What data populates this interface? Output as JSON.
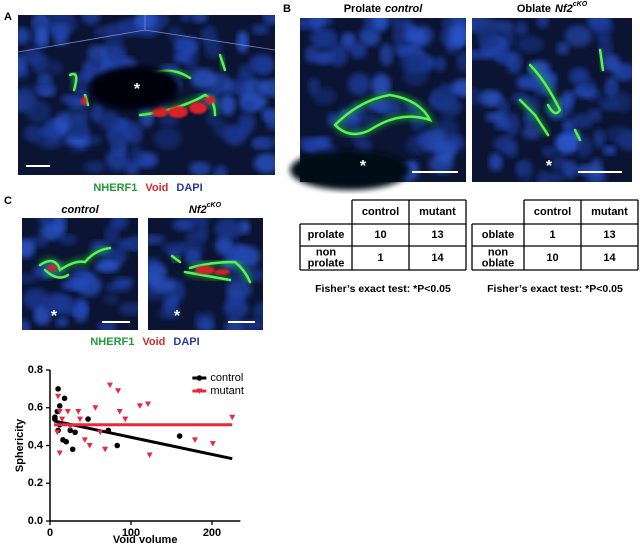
{
  "panel_labels": [
    "A",
    "B",
    "C"
  ],
  "stain_legend": {
    "nherf1": "NHERF1",
    "void": "Void",
    "dapi": "DAPI"
  },
  "panel_a": {
    "void_marker": "*"
  },
  "panel_b": {
    "images": [
      {
        "title": {
          "plain": "Prolate",
          "italic": "control"
        },
        "void_marker": "*"
      },
      {
        "title": {
          "plain": "Oblate",
          "italic": "Nf2",
          "superscript": "cKO"
        },
        "void_marker": "*"
      }
    ],
    "tables": [
      {
        "columns": [
          "control",
          "mutant"
        ],
        "rows": [
          {
            "label": [
              "prolate"
            ],
            "values": [
              10,
              13
            ]
          },
          {
            "label": [
              "non",
              "prolate"
            ],
            "values": [
              1,
              14
            ]
          }
        ],
        "note": "Fisher’s exact test: *P<0.05"
      },
      {
        "columns": [
          "control",
          "mutant"
        ],
        "rows": [
          {
            "label": [
              "oblate"
            ],
            "values": [
              1,
              13
            ]
          },
          {
            "label": [
              "non",
              "oblate"
            ],
            "values": [
              10,
              14
            ]
          }
        ],
        "note": "Fisher’s exact test: *P<0.05"
      }
    ]
  },
  "panel_c": {
    "images": [
      {
        "title": {
          "italic": "control"
        },
        "void_marker": "*"
      },
      {
        "title": {
          "italic": "Nf2",
          "superscript": "cKO"
        },
        "void_marker": "*"
      }
    ]
  },
  "chart_data": {
    "type": "scatter",
    "xlabel": "Void volume",
    "ylabel": "Sphericity",
    "xlim": [
      0,
      235
    ],
    "ylim": [
      0,
      0.8
    ],
    "xticks": [
      0,
      100,
      200
    ],
    "yticks": [
      {
        "value": 0,
        "label": "0.0"
      },
      {
        "value": 0.2,
        "label": "0.2"
      },
      {
        "value": 0.4,
        "label": "0.4"
      },
      {
        "value": 0.6,
        "label": "0.6"
      },
      {
        "value": 0.8,
        "label": "0.8"
      }
    ],
    "legend": "upper right",
    "series": [
      {
        "name": "control",
        "color": "#000000",
        "marker": "circle",
        "x": [
          10,
          12,
          18,
          9,
          6,
          12,
          16,
          20,
          25,
          28,
          31,
          47,
          72,
          83,
          160,
          10,
          6
        ],
        "values": [
          0.7,
          0.61,
          0.65,
          0.58,
          0.54,
          0.51,
          0.43,
          0.42,
          0.48,
          0.38,
          0.47,
          0.54,
          0.48,
          0.4,
          0.45,
          0.48,
          0.55
        ],
        "fit": {
          "x": [
            5,
            225
          ],
          "y": [
            0.53,
            0.33
          ]
        }
      },
      {
        "name": "mutant",
        "color": "#e8283c",
        "marker": "triangle-down",
        "x": [
          10,
          12,
          15,
          9,
          12,
          22,
          25,
          37,
          43,
          49,
          56,
          62,
          74,
          84,
          86,
          93,
          111,
          121,
          123,
          179,
          201,
          225,
          68,
          35
        ],
        "values": [
          0.66,
          0.58,
          0.54,
          0.47,
          0.36,
          0.58,
          0.5,
          0.54,
          0.43,
          0.4,
          0.6,
          0.47,
          0.72,
          0.69,
          0.58,
          0.54,
          0.61,
          0.62,
          0.35,
          0.43,
          0.41,
          0.55,
          0.38,
          0.58
        ],
        "fit": {
          "x": [
            5,
            225
          ],
          "y": [
            0.51,
            0.51
          ]
        }
      }
    ]
  }
}
